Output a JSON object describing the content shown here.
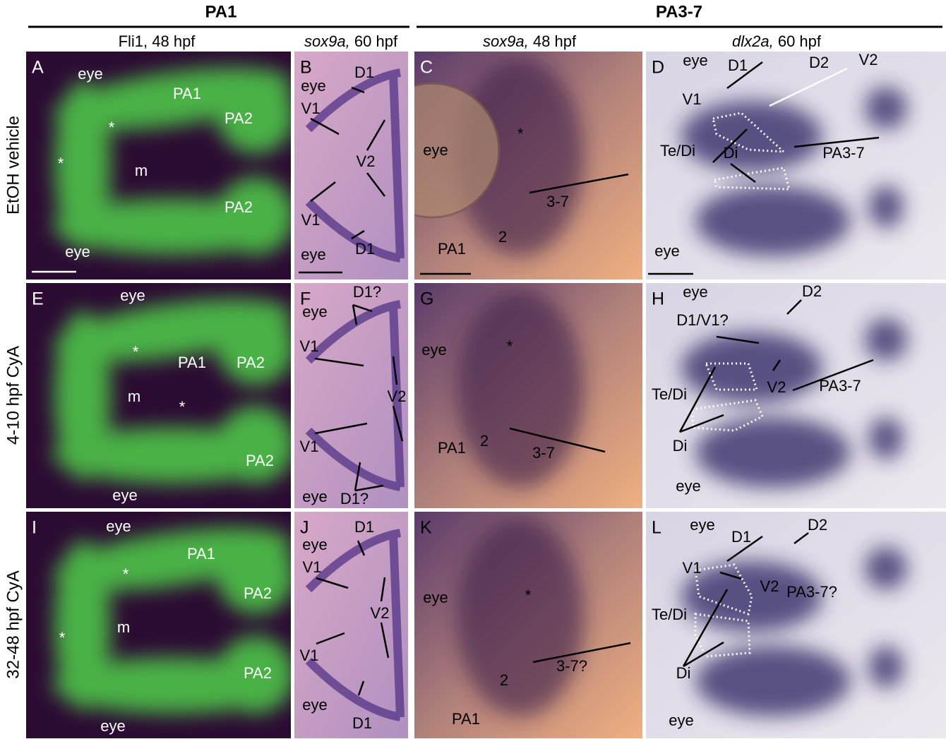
{
  "groups": [
    "PA1",
    "PA3-7"
  ],
  "columns": [
    {
      "text": "Fli1, 48 hpf"
    },
    {
      "italic": "sox9a,",
      "text": "60 hpf"
    },
    {
      "italic": "sox9a,",
      "text": "48 hpf"
    },
    {
      "italic": "dlx2a,",
      "text": "60 hpf"
    }
  ],
  "rows": [
    "EtOH vehicle",
    "4-10 hpf CyA",
    "32-48 hpf CyA"
  ],
  "panels": [
    {
      "letter": "A",
      "labels": [
        "eye",
        "PA1",
        "PA2",
        "*",
        "*",
        "m",
        "PA2",
        "eye"
      ]
    },
    {
      "letter": "B",
      "labels": [
        "eye",
        "D1",
        "V1",
        "V2",
        "V1",
        "D1",
        "eye"
      ]
    },
    {
      "letter": "C",
      "labels": [
        "eye",
        "*",
        "3-7",
        "2",
        "PA1"
      ]
    },
    {
      "letter": "D",
      "labels": [
        "eye",
        "D1",
        "D2",
        "V2",
        "V1",
        "Te/Di",
        "Di",
        "PA3-7",
        "eye"
      ]
    },
    {
      "letter": "E",
      "labels": [
        "eye",
        "*",
        "PA1",
        "PA2",
        "m",
        "*",
        "PA2",
        "eye"
      ]
    },
    {
      "letter": "F",
      "labels": [
        "D1?",
        "eye",
        "V1",
        "V2",
        "V1",
        "eye",
        "D1?"
      ]
    },
    {
      "letter": "G",
      "labels": [
        "eye",
        "*",
        "PA1",
        "2",
        "3-7"
      ]
    },
    {
      "letter": "H",
      "labels": [
        "eye",
        "D2",
        "D1/V1?",
        "Te/Di",
        "V2",
        "PA3-7",
        "Di",
        "eye"
      ]
    },
    {
      "letter": "I",
      "labels": [
        "eye",
        "PA1",
        "*",
        "PA2",
        "m",
        "*",
        "PA2",
        "eye"
      ]
    },
    {
      "letter": "J",
      "labels": [
        "D1",
        "eye",
        "V1",
        "V2",
        "V1",
        "eye",
        "D1"
      ]
    },
    {
      "letter": "K",
      "labels": [
        "eye",
        "*",
        "3-7?",
        "2",
        "PA1"
      ]
    },
    {
      "letter": "L",
      "labels": [
        "eye",
        "D1",
        "D2",
        "V1",
        "V2",
        "PA3-7?",
        "Te/Di",
        "Di",
        "eye"
      ]
    }
  ]
}
